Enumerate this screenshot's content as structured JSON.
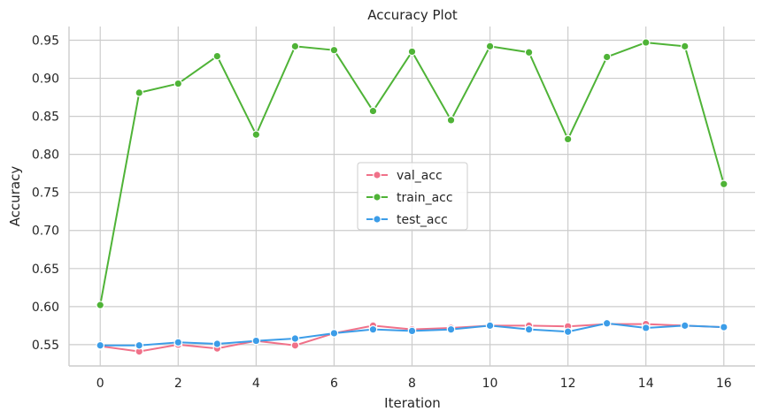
{
  "chart_data": {
    "type": "line",
    "title": "Accuracy Plot",
    "xlabel": "Iteration",
    "ylabel": "Accuracy",
    "x": [
      0,
      1,
      2,
      3,
      4,
      5,
      6,
      7,
      8,
      9,
      10,
      11,
      12,
      13,
      14,
      15,
      16
    ],
    "xticks": [
      0,
      2,
      4,
      6,
      8,
      10,
      12,
      14,
      16
    ],
    "yticks": [
      0.55,
      0.6,
      0.65,
      0.7,
      0.75,
      0.8,
      0.85,
      0.9,
      0.95
    ],
    "xlim": [
      -0.8,
      16.8
    ],
    "ylim": [
      0.522,
      0.968
    ],
    "grid": true,
    "legend_position": "center",
    "series": [
      {
        "name": "val_acc",
        "color": "#f07189",
        "values": [
          0.548,
          0.541,
          0.55,
          0.545,
          0.555,
          0.549,
          0.565,
          0.575,
          0.57,
          0.572,
          0.575,
          0.575,
          0.574,
          0.577,
          0.577,
          0.575,
          0.573
        ]
      },
      {
        "name": "train_acc",
        "color": "#4fb337",
        "values": [
          0.602,
          0.881,
          0.893,
          0.929,
          0.826,
          0.942,
          0.937,
          0.857,
          0.935,
          0.845,
          0.942,
          0.934,
          0.82,
          0.928,
          0.947,
          0.942,
          0.761
        ]
      },
      {
        "name": "test_acc",
        "color": "#3c9de8",
        "values": [
          0.549,
          0.549,
          0.553,
          0.551,
          0.555,
          0.558,
          0.565,
          0.57,
          0.568,
          0.57,
          0.575,
          0.57,
          0.567,
          0.578,
          0.572,
          0.575,
          0.573
        ]
      }
    ]
  }
}
